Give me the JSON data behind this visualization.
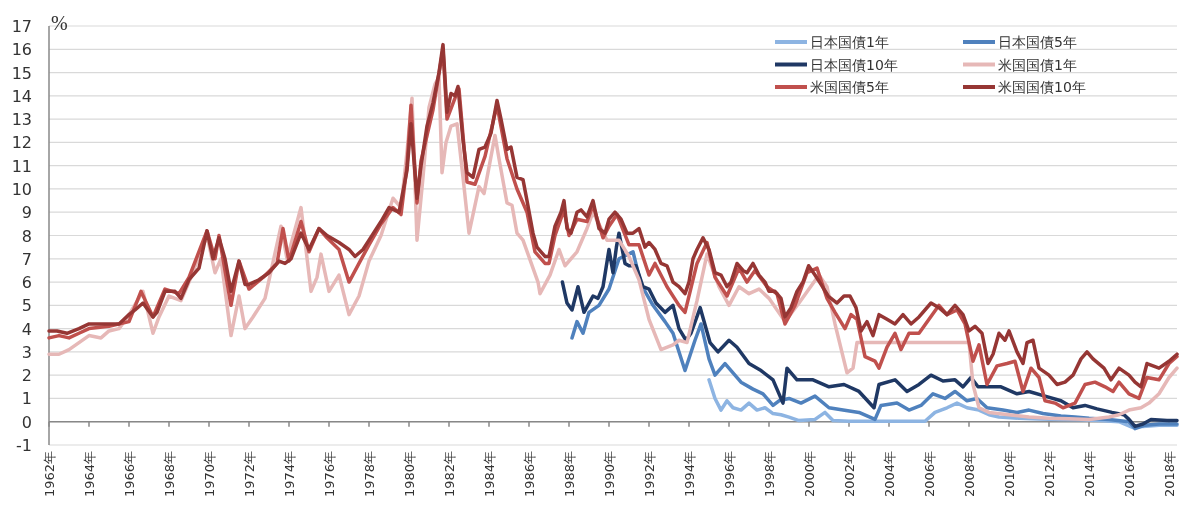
{
  "chart_data": {
    "type": "line",
    "ylabel": "%",
    "xlim": [
      1962,
      2018.4
    ],
    "ylim": [
      -1,
      17
    ],
    "yticks": [
      -1,
      0,
      1,
      2,
      3,
      4,
      5,
      6,
      7,
      8,
      9,
      10,
      11,
      12,
      13,
      14,
      15,
      16,
      17
    ],
    "xticks": [
      {
        "value": 1962,
        "label": "1962年"
      },
      {
        "value": 1964,
        "label": "1964年"
      },
      {
        "value": 1966,
        "label": "1966年"
      },
      {
        "value": 1968,
        "label": "1968年"
      },
      {
        "value": 1970,
        "label": "1970年"
      },
      {
        "value": 1972,
        "label": "1972年"
      },
      {
        "value": 1974,
        "label": "1974年"
      },
      {
        "value": 1976,
        "label": "1976年"
      },
      {
        "value": 1978,
        "label": "1978年"
      },
      {
        "value": 1980,
        "label": "1980年"
      },
      {
        "value": 1982,
        "label": "1982年"
      },
      {
        "value": 1984,
        "label": "1984年"
      },
      {
        "value": 1986,
        "label": "1986年"
      },
      {
        "value": 1988,
        "label": "1988年"
      },
      {
        "value": 1990,
        "label": "1990年"
      },
      {
        "value": 1992,
        "label": "1992年"
      },
      {
        "value": 1994,
        "label": "1994年"
      },
      {
        "value": 1996,
        "label": "1996年"
      },
      {
        "value": 1998,
        "label": "1998年"
      },
      {
        "value": 2000,
        "label": "2000年"
      },
      {
        "value": 2002,
        "label": "2002年"
      },
      {
        "value": 2004,
        "label": "2004年"
      },
      {
        "value": 2006,
        "label": "2006年"
      },
      {
        "value": 2008,
        "label": "2008年"
      },
      {
        "value": 2010,
        "label": "2010年"
      },
      {
        "value": 2012,
        "label": "2012年"
      },
      {
        "value": 2014,
        "label": "2014年"
      },
      {
        "value": 2016,
        "label": "2016年"
      },
      {
        "value": 2018,
        "label": "2018年"
      }
    ],
    "grid": "y",
    "legend": "top right",
    "series": [
      {
        "name": "日本国債1年",
        "color": "#8db4e2",
        "x": [
          1995.0,
          1995.3,
          1995.6,
          1995.9,
          1996.2,
          1996.6,
          1997.0,
          1997.4,
          1997.8,
          1998.2,
          1998.6,
          1999.0,
          1999.5,
          2000.3,
          2000.8,
          2001.2,
          2002.0,
          2004.0,
          2005.8,
          2006.3,
          2006.9,
          2007.4,
          2007.9,
          2008.5,
          2009.0,
          2009.5,
          2010.5,
          2011.5,
          2012.5,
          2013.5,
          2014.5,
          2015.5,
          2016.2,
          2016.7,
          2017.5,
          2018.4
        ],
        "values": [
          1.8,
          1.0,
          0.5,
          0.9,
          0.6,
          0.5,
          0.8,
          0.5,
          0.6,
          0.35,
          0.3,
          0.2,
          0.05,
          0.1,
          0.4,
          0.05,
          0.02,
          0.02,
          0.02,
          0.4,
          0.6,
          0.8,
          0.6,
          0.5,
          0.3,
          0.2,
          0.15,
          0.12,
          0.1,
          0.08,
          0.05,
          0.0,
          -0.25,
          -0.2,
          -0.15,
          -0.15
        ]
      },
      {
        "name": "日本国債5年",
        "color": "#4f81bd",
        "x": [
          1988.15,
          1988.4,
          1988.7,
          1989.0,
          1989.5,
          1990.0,
          1990.5,
          1991.2,
          1991.6,
          1992.2,
          1992.8,
          1993.2,
          1993.8,
          1994.3,
          1994.6,
          1995.0,
          1995.3,
          1995.8,
          1996.2,
          1996.6,
          1997.2,
          1997.7,
          1998.2,
          1998.5,
          1999.0,
          1999.6,
          2000.3,
          2001.0,
          2001.7,
          2002.5,
          2003.3,
          2003.6,
          2004.4,
          2005.0,
          2005.6,
          2006.2,
          2006.8,
          2007.3,
          2007.9,
          2008.4,
          2008.9,
          2009.7,
          2010.4,
          2011.0,
          2011.7,
          2012.6,
          2013.3,
          2014.0,
          2015.0,
          2016.0,
          2016.3,
          2016.8,
          2017.5,
          2018.4
        ],
        "values": [
          3.6,
          4.3,
          3.8,
          4.7,
          5.0,
          5.7,
          7.0,
          7.3,
          5.9,
          5.0,
          4.3,
          3.8,
          2.2,
          3.5,
          4.2,
          2.7,
          2.0,
          2.5,
          2.1,
          1.7,
          1.4,
          1.2,
          0.7,
          0.9,
          1.0,
          0.8,
          1.1,
          0.6,
          0.5,
          0.4,
          0.1,
          0.7,
          0.8,
          0.5,
          0.7,
          1.2,
          1.0,
          1.3,
          0.9,
          1.0,
          0.6,
          0.5,
          0.4,
          0.5,
          0.35,
          0.25,
          0.2,
          0.15,
          0.1,
          0.0,
          -0.3,
          -0.15,
          -0.1,
          -0.1
        ]
      },
      {
        "name": "日本国債10年",
        "color": "#1f3864",
        "x": [
          1987.67,
          1987.9,
          1988.15,
          1988.45,
          1988.75,
          1989.2,
          1989.45,
          1989.7,
          1990.0,
          1990.2,
          1990.37,
          1990.5,
          1990.8,
          1991.0,
          1991.35,
          1991.7,
          1992.0,
          1992.35,
          1992.8,
          1993.2,
          1993.5,
          1993.85,
          1994.1,
          1994.56,
          1995.05,
          1995.45,
          1996.0,
          1996.4,
          1997.0,
          1997.6,
          1998.2,
          1998.7,
          1998.9,
          1999.4,
          2000.2,
          2001.0,
          2001.75,
          2002.5,
          2003.25,
          2003.5,
          2004.3,
          2004.9,
          2005.5,
          2006.1,
          2006.7,
          2007.3,
          2007.7,
          2008.1,
          2008.45,
          2008.95,
          2009.6,
          2010.4,
          2011.0,
          2011.8,
          2012.6,
          2013.2,
          2013.8,
          2014.4,
          2015.15,
          2015.75,
          2016.0,
          2016.3,
          2016.7,
          2017.1,
          2017.9,
          2018.4
        ],
        "values": [
          6.0,
          5.1,
          4.8,
          5.8,
          4.7,
          5.4,
          5.3,
          5.8,
          7.4,
          6.4,
          7.5,
          8.1,
          6.8,
          6.7,
          6.7,
          5.8,
          5.7,
          5.1,
          4.7,
          5.0,
          4.0,
          3.5,
          3.8,
          4.9,
          3.4,
          3.0,
          3.5,
          3.2,
          2.5,
          2.2,
          1.8,
          0.8,
          2.3,
          1.8,
          1.8,
          1.5,
          1.6,
          1.3,
          0.6,
          1.6,
          1.8,
          1.3,
          1.6,
          2.0,
          1.75,
          1.8,
          1.5,
          1.9,
          1.5,
          1.5,
          1.5,
          1.2,
          1.3,
          1.1,
          0.9,
          0.6,
          0.7,
          0.55,
          0.4,
          0.3,
          0.1,
          -0.2,
          -0.1,
          0.1,
          0.05,
          0.05
        ]
      },
      {
        "name": "米国国債1年",
        "color": "#e6b8b7",
        "x": [
          1962.0,
          1962.5,
          1963.0,
          1963.5,
          1964.0,
          1964.6,
          1965.0,
          1965.5,
          1966.0,
          1966.7,
          1967.2,
          1967.5,
          1968.0,
          1968.6,
          1969.0,
          1969.9,
          1970.3,
          1970.6,
          1971.1,
          1971.5,
          1971.8,
          1972.2,
          1972.8,
          1973.6,
          1973.9,
          1974.6,
          1975.1,
          1975.4,
          1975.6,
          1976.0,
          1976.5,
          1977.0,
          1977.5,
          1978.0,
          1978.6,
          1979.2,
          1979.6,
          1979.9,
          1980.15,
          1980.4,
          1980.7,
          1981.0,
          1981.3,
          1981.5,
          1981.65,
          1981.85,
          1982.1,
          1982.4,
          1982.7,
          1983.0,
          1983.5,
          1983.75,
          1984.3,
          1984.5,
          1984.9,
          1985.15,
          1985.4,
          1985.7,
          1986.45,
          1986.55,
          1987.05,
          1987.5,
          1987.8,
          1988.4,
          1988.9,
          1989.2,
          1989.9,
          1990.5,
          1991.0,
          1991.5,
          1992.0,
          1992.6,
          1993.2,
          1993.5,
          1993.9,
          1994.4,
          1994.9,
          1995.5,
          1996.0,
          1996.5,
          1997.0,
          1997.5,
          1998.0,
          1998.8,
          1999.5,
          2000.5,
          2000.9,
          2001.3,
          2001.9,
          2002.2,
          2002.4,
          2008.0,
          2008.2,
          2008.5,
          2009.0,
          2010.0,
          2011.0,
          2012.0,
          2013.0,
          2014.0,
          2015.0,
          2015.5,
          2016.0,
          2016.6,
          2017.0,
          2017.5,
          2018.0,
          2018.4
        ],
        "values": [
          2.9,
          2.9,
          3.1,
          3.4,
          3.7,
          3.6,
          3.9,
          4.0,
          4.6,
          5.6,
          3.8,
          4.5,
          5.4,
          5.2,
          6.0,
          8.0,
          6.4,
          7.0,
          3.7,
          5.4,
          4.0,
          4.5,
          5.3,
          8.4,
          7.0,
          9.2,
          5.6,
          6.2,
          7.2,
          5.6,
          6.3,
          4.6,
          5.4,
          6.9,
          8.0,
          9.6,
          9.2,
          11.6,
          13.9,
          7.8,
          10.5,
          13.5,
          14.5,
          14.8,
          10.7,
          12.0,
          12.7,
          12.8,
          10.5,
          8.1,
          10.1,
          9.8,
          12.3,
          11.3,
          9.4,
          9.3,
          8.1,
          7.8,
          6.0,
          5.5,
          6.3,
          7.4,
          6.7,
          7.3,
          8.3,
          9.0,
          7.8,
          7.8,
          7.1,
          6.1,
          4.4,
          3.1,
          3.3,
          3.5,
          3.4,
          5.2,
          7.2,
          5.8,
          5.0,
          5.8,
          5.5,
          5.7,
          5.3,
          4.3,
          5.1,
          6.3,
          5.8,
          4.2,
          2.1,
          2.3,
          3.4,
          3.4,
          1.6,
          0.6,
          0.4,
          0.3,
          0.2,
          0.15,
          0.13,
          0.1,
          0.2,
          0.3,
          0.5,
          0.6,
          0.8,
          1.2,
          1.9,
          2.3
        ]
      },
      {
        "name": "米国国債5年",
        "color": "#c0504d",
        "x": [
          1962.0,
          1962.5,
          1963.0,
          1963.5,
          1964.0,
          1965.0,
          1966.0,
          1966.6,
          1967.2,
          1967.8,
          1968.5,
          1969.0,
          1969.9,
          1970.3,
          1970.5,
          1971.1,
          1971.5,
          1972.0,
          1972.7,
          1973.4,
          1973.7,
          1974.0,
          1974.6,
          1975.0,
          1975.5,
          1975.9,
          1976.5,
          1977.0,
          1977.5,
          1978.0,
          1978.6,
          1979.2,
          1979.6,
          1979.9,
          1980.1,
          1980.4,
          1980.6,
          1981.2,
          1981.7,
          1981.9,
          1982.3,
          1982.5,
          1982.9,
          1983.3,
          1983.8,
          1984.4,
          1984.9,
          1985.4,
          1985.9,
          1986.3,
          1986.8,
          1987.0,
          1987.3,
          1987.75,
          1988.0,
          1988.4,
          1988.9,
          1989.2,
          1989.7,
          1990.0,
          1990.4,
          1991.0,
          1991.5,
          1992.0,
          1992.3,
          1992.9,
          1993.5,
          1993.8,
          1994.4,
          1994.9,
          1995.3,
          1995.9,
          1996.5,
          1996.9,
          1997.3,
          1997.9,
          1998.4,
          1998.8,
          1999.3,
          1999.9,
          2000.4,
          2000.9,
          2001.3,
          2001.8,
          2002.1,
          2002.4,
          2002.8,
          2003.3,
          2003.5,
          2003.9,
          2004.3,
          2004.6,
          2005.0,
          2005.5,
          2006.0,
          2006.5,
          2006.9,
          2007.4,
          2007.8,
          2008.2,
          2008.5,
          2008.9,
          2009.4,
          2009.9,
          2010.3,
          2010.7,
          2011.1,
          2011.5,
          2011.8,
          2012.3,
          2012.7,
          2013.3,
          2013.8,
          2014.3,
          2014.8,
          2015.2,
          2015.5,
          2016.0,
          2016.5,
          2016.9,
          2017.5,
          2018.0,
          2018.4
        ],
        "values": [
          3.6,
          3.7,
          3.6,
          3.8,
          4.0,
          4.1,
          4.3,
          5.6,
          4.5,
          5.7,
          5.5,
          6.2,
          8.2,
          7.0,
          8.0,
          5.0,
          6.9,
          5.7,
          6.2,
          6.8,
          8.3,
          6.9,
          8.6,
          7.3,
          8.3,
          7.9,
          7.4,
          6.0,
          6.8,
          7.6,
          8.5,
          9.2,
          8.9,
          11.0,
          13.6,
          9.4,
          11.2,
          13.4,
          16.0,
          13.0,
          13.9,
          14.3,
          10.3,
          10.2,
          11.4,
          13.6,
          11.3,
          10.0,
          9.0,
          7.3,
          6.8,
          6.8,
          8.0,
          9.1,
          8.0,
          8.7,
          8.6,
          9.3,
          7.9,
          8.4,
          8.9,
          7.6,
          7.6,
          6.3,
          6.8,
          5.8,
          5.0,
          4.7,
          6.8,
          7.7,
          6.2,
          5.4,
          6.6,
          6.0,
          6.5,
          5.8,
          5.5,
          4.2,
          5.0,
          6.4,
          6.6,
          5.3,
          4.7,
          4.0,
          4.6,
          4.4,
          2.8,
          2.6,
          2.3,
          3.2,
          3.8,
          3.1,
          3.8,
          3.8,
          4.4,
          5.0,
          4.6,
          4.8,
          4.2,
          2.6,
          3.3,
          1.6,
          2.4,
          2.5,
          2.6,
          1.3,
          2.3,
          1.9,
          0.9,
          0.8,
          0.6,
          0.8,
          1.6,
          1.7,
          1.5,
          1.3,
          1.7,
          1.2,
          1.0,
          1.9,
          1.8,
          2.5,
          2.8
        ]
      },
      {
        "name": "米国国債10年",
        "color": "#963634",
        "x": [
          1962.0,
          1962.4,
          1962.9,
          1963.5,
          1964.0,
          1964.6,
          1965.5,
          1966.0,
          1966.3,
          1966.7,
          1967.2,
          1967.4,
          1967.8,
          1968.3,
          1968.6,
          1969.0,
          1969.5,
          1969.9,
          1970.2,
          1970.5,
          1970.8,
          1971.1,
          1971.5,
          1971.8,
          1972.0,
          1972.5,
          1973.0,
          1973.5,
          1973.8,
          1974.1,
          1974.6,
          1975.0,
          1975.5,
          1975.9,
          1976.5,
          1977.0,
          1977.3,
          1977.7,
          1978.0,
          1978.6,
          1979.0,
          1979.5,
          1979.9,
          1980.1,
          1980.4,
          1980.6,
          1980.9,
          1981.2,
          1981.5,
          1981.7,
          1981.9,
          1982.1,
          1982.3,
          1982.45,
          1982.7,
          1982.9,
          1983.2,
          1983.5,
          1983.8,
          1984.1,
          1984.4,
          1984.6,
          1984.9,
          1985.1,
          1985.4,
          1985.7,
          1985.9,
          1986.2,
          1986.4,
          1986.6,
          1986.8,
          1987.0,
          1987.3,
          1987.6,
          1987.75,
          1987.9,
          1988.1,
          1988.4,
          1988.6,
          1988.9,
          1989.2,
          1989.5,
          1989.8,
          1990.0,
          1990.3,
          1990.6,
          1990.9,
          1991.2,
          1991.5,
          1991.8,
          1992.0,
          1992.3,
          1992.6,
          1992.9,
          1993.2,
          1993.5,
          1993.8,
          1994.0,
          1994.2,
          1994.4,
          1994.7,
          1995.0,
          1995.3,
          1995.6,
          1995.9,
          1996.1,
          1996.4,
          1996.7,
          1996.9,
          1997.2,
          1997.5,
          1997.8,
          1998.0,
          1998.3,
          1998.6,
          1998.8,
          1999.1,
          1999.4,
          1999.7,
          1999.98,
          2000.3,
          2000.6,
          2000.96,
          2001.4,
          2001.75,
          2002.05,
          2002.35,
          2002.6,
          2002.9,
          2003.2,
          2003.5,
          2003.9,
          2004.3,
          2004.7,
          2005.1,
          2005.5,
          2006.1,
          2006.5,
          2006.9,
          2007.3,
          2007.7,
          2008.0,
          2008.3,
          2008.65,
          2008.95,
          2009.2,
          2009.5,
          2009.8,
          2010.0,
          2010.4,
          2010.7,
          2010.9,
          2011.2,
          2011.5,
          2012.0,
          2012.4,
          2012.8,
          2013.2,
          2013.6,
          2013.9,
          2014.2,
          2014.75,
          2015.1,
          2015.5,
          2016.0,
          2016.3,
          2016.6,
          2016.9,
          2017.5,
          2018.0,
          2018.4
        ],
        "values": [
          3.9,
          3.9,
          3.8,
          4.0,
          4.2,
          4.2,
          4.2,
          4.6,
          4.8,
          5.1,
          4.5,
          4.7,
          5.6,
          5.6,
          5.3,
          6.1,
          6.6,
          8.2,
          7.0,
          7.9,
          7.0,
          5.6,
          6.9,
          5.9,
          5.9,
          6.1,
          6.4,
          6.9,
          6.8,
          7.0,
          8.1,
          7.4,
          8.3,
          8.0,
          7.7,
          7.4,
          7.1,
          7.4,
          7.8,
          8.6,
          9.2,
          9.0,
          10.8,
          12.8,
          9.6,
          11.0,
          12.7,
          13.7,
          15.0,
          16.2,
          13.3,
          14.1,
          14.0,
          14.4,
          12.1,
          10.7,
          10.5,
          11.7,
          11.8,
          12.4,
          13.8,
          13.0,
          11.7,
          11.8,
          10.5,
          10.4,
          9.5,
          8.1,
          7.5,
          7.3,
          7.1,
          7.1,
          8.4,
          9.0,
          9.5,
          8.3,
          8.1,
          9.0,
          9.1,
          8.8,
          9.5,
          8.3,
          8.1,
          8.7,
          9.0,
          8.7,
          8.1,
          8.1,
          8.3,
          7.5,
          7.7,
          7.4,
          6.8,
          6.7,
          6.0,
          5.8,
          5.5,
          6.0,
          7.0,
          7.4,
          7.9,
          7.4,
          6.4,
          6.3,
          5.8,
          6.0,
          6.8,
          6.5,
          6.4,
          6.8,
          6.3,
          6.0,
          5.6,
          5.6,
          5.3,
          4.5,
          4.9,
          5.6,
          6.0,
          6.7,
          6.3,
          5.9,
          5.4,
          5.1,
          5.4,
          5.4,
          4.9,
          3.9,
          4.3,
          3.7,
          4.6,
          4.4,
          4.2,
          4.6,
          4.2,
          4.5,
          5.1,
          4.9,
          4.6,
          5.0,
          4.6,
          3.9,
          4.1,
          3.8,
          2.5,
          2.9,
          3.8,
          3.5,
          3.9,
          3.0,
          2.5,
          3.4,
          3.5,
          2.3,
          2.0,
          1.6,
          1.7,
          2.0,
          2.7,
          3.0,
          2.7,
          2.3,
          1.8,
          2.3,
          2.0,
          1.7,
          1.5,
          2.5,
          2.3,
          2.6,
          2.9
        ]
      }
    ]
  }
}
